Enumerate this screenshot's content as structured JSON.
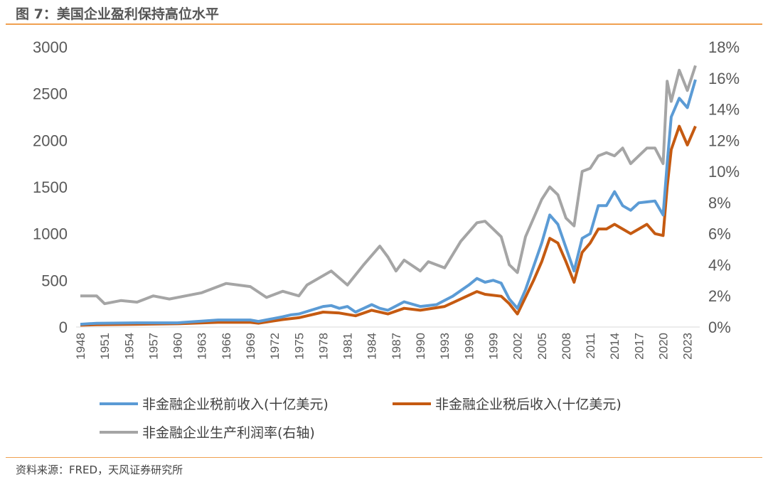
{
  "title": "图 7：美国企业盈利保持高位水平",
  "source": "资料来源：FRED，天风证券研究所",
  "chart_data": {
    "type": "line",
    "title": "图 7：美国企业盈利保持高位水平",
    "left_ylim": [
      0,
      3000
    ],
    "left_ticks": [
      "0",
      "500",
      "1000",
      "1500",
      "2000",
      "2500",
      "3000"
    ],
    "right_ylim": [
      0,
      18
    ],
    "right_ticks": [
      "0%",
      "2%",
      "4%",
      "6%",
      "8%",
      "10%",
      "12%",
      "14%",
      "16%",
      "18%"
    ],
    "xlim": [
      1948,
      2024
    ],
    "x_ticks": [
      "1948",
      "1951",
      "1954",
      "1957",
      "1960",
      "1963",
      "1966",
      "1969",
      "1972",
      "1975",
      "1978",
      "1981",
      "1984",
      "1987",
      "1990",
      "1993",
      "1996",
      "1999",
      "2002",
      "2005",
      "2008",
      "2011",
      "2014",
      "2017",
      "2020",
      "2023"
    ],
    "grid": false,
    "legend_placement": "bottom",
    "series": [
      {
        "name": "非金融企业税前收入(十亿美元)",
        "axis": "left",
        "color": "#5b9bd5",
        "x": [
          1948,
          1950,
          1955,
          1960,
          1965,
          1969,
          1970,
          1973,
          1974,
          1975,
          1978,
          1979,
          1980,
          1981,
          1982,
          1984,
          1985,
          1986,
          1988,
          1990,
          1992,
          1994,
          1996,
          1997,
          1998,
          1999,
          2000,
          2001,
          2002,
          2003,
          2004,
          2005,
          2006,
          2007,
          2008,
          2009,
          2010,
          2011,
          2012,
          2013,
          2014,
          2015,
          2016,
          2017,
          2018,
          2019,
          2020,
          2020.5,
          2021,
          2022,
          2023,
          2024
        ],
        "values": [
          30,
          40,
          45,
          45,
          75,
          75,
          60,
          110,
          130,
          140,
          220,
          230,
          200,
          220,
          160,
          240,
          200,
          180,
          270,
          220,
          240,
          330,
          450,
          520,
          480,
          500,
          470,
          300,
          200,
          400,
          650,
          900,
          1200,
          1100,
          850,
          600,
          950,
          1000,
          1300,
          1300,
          1450,
          1300,
          1250,
          1330,
          1340,
          1350,
          1200,
          1750,
          2250,
          2450,
          2350,
          2650
        ]
      },
      {
        "name": "非金融企业税后收入(十亿美元)",
        "axis": "left",
        "color": "#c55a11",
        "x": [
          1948,
          1950,
          1955,
          1960,
          1965,
          1969,
          1970,
          1973,
          1975,
          1978,
          1980,
          1982,
          1984,
          1986,
          1988,
          1990,
          1993,
          1996,
          1997,
          1998,
          2000,
          2001,
          2002,
          2003,
          2004,
          2005,
          2006,
          2007,
          2008,
          2009,
          2010,
          2011,
          2012,
          2013,
          2014,
          2015,
          2016,
          2017,
          2018,
          2019,
          2020,
          2020.5,
          2021,
          2022,
          2023,
          2024
        ],
        "values": [
          20,
          25,
          30,
          35,
          50,
          50,
          40,
          80,
          100,
          160,
          150,
          120,
          180,
          140,
          200,
          180,
          220,
          340,
          380,
          350,
          330,
          250,
          140,
          320,
          500,
          700,
          950,
          900,
          700,
          480,
          800,
          900,
          1050,
          1050,
          1100,
          1050,
          1000,
          1050,
          1100,
          1000,
          980,
          1500,
          1900,
          2150,
          1950,
          2150
        ]
      },
      {
        "name": "非金融企业生产利润率(右轴)",
        "axis": "right",
        "color": "#a5a5a5",
        "x": [
          1948,
          1950,
          1951,
          1953,
          1955,
          1957,
          1959,
          1961,
          1963,
          1966,
          1969,
          1971,
          1973,
          1975,
          1976,
          1979,
          1981,
          1983,
          1985,
          1986,
          1987,
          1988,
          1990,
          1991,
          1993,
          1995,
          1997,
          1998,
          1999,
          2000,
          2001,
          2002,
          2003,
          2005,
          2006,
          2007,
          2008,
          2009,
          2010,
          2011,
          2012,
          2013,
          2014,
          2015,
          2016,
          2017,
          2018,
          2019,
          2020,
          2020.5,
          2021,
          2022,
          2023,
          2024
        ],
        "values": [
          2.0,
          2.0,
          1.5,
          1.7,
          1.6,
          2.0,
          1.8,
          2.0,
          2.2,
          2.8,
          2.6,
          1.9,
          2.3,
          2.0,
          2.7,
          3.6,
          2.7,
          4.0,
          5.2,
          4.5,
          3.6,
          4.3,
          3.6,
          4.2,
          3.8,
          5.5,
          6.7,
          6.8,
          6.3,
          5.8,
          4.0,
          3.5,
          5.8,
          8.2,
          9.0,
          8.5,
          7.0,
          6.5,
          10.0,
          10.2,
          11.0,
          11.2,
          11.0,
          11.5,
          10.5,
          11.0,
          11.5,
          11.5,
          10.5,
          15.8,
          14.5,
          16.5,
          15.2,
          16.8
        ]
      }
    ]
  }
}
